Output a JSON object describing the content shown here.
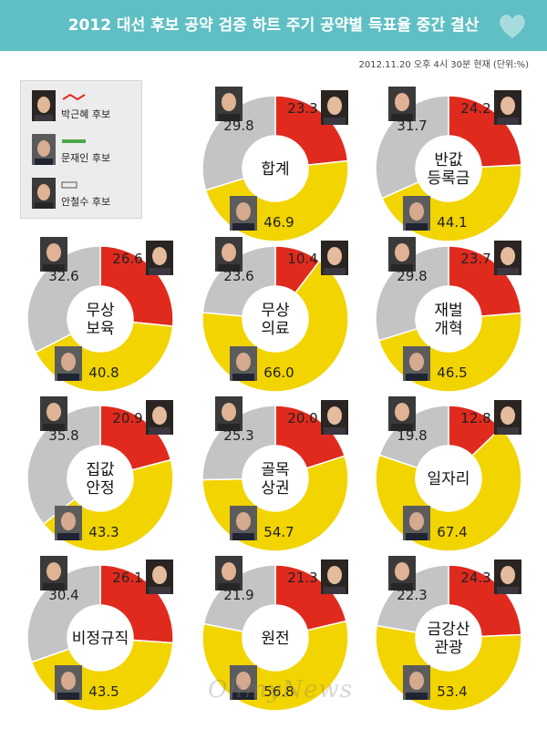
{
  "header": {
    "title": "2012 대선 후보 공약 검증 하트 주기 공약별 득표율 중간 결산",
    "subtitle": "2012.11.20 오후 4시 30분 현재 (단위:%)"
  },
  "legend": [
    {
      "name": "박근혜 후보",
      "color": "#e02a1e",
      "logo": "새누리당"
    },
    {
      "name": "문재인 후보",
      "color": "#f2d400",
      "logo": "민주통합당"
    },
    {
      "name": "안철수 후보",
      "color": "#c4c4c4",
      "logo": "무소속"
    }
  ],
  "watermark": "OhmyNews",
  "colors": {
    "park": "#e02a1e",
    "moon": "#f2d400",
    "ahn": "#c4c4c4",
    "header": "#5fbfc4"
  },
  "chart_data": [
    {
      "type": "pie",
      "label": "합계",
      "values": {
        "박근혜": 23.3,
        "문재인": 46.9,
        "안철수": 29.8
      }
    },
    {
      "type": "pie",
      "label": "반값 등록금",
      "values": {
        "박근혜": 24.2,
        "문재인": 44.1,
        "안철수": 31.7
      }
    },
    {
      "type": "pie",
      "label": "무상 보육",
      "values": {
        "박근혜": 26.6,
        "문재인": 40.8,
        "안철수": 32.6
      }
    },
    {
      "type": "pie",
      "label": "무상 의료",
      "values": {
        "박근혜": 10.4,
        "문재인": 66.0,
        "안철수": 23.6
      }
    },
    {
      "type": "pie",
      "label": "재벌 개혁",
      "values": {
        "박근혜": 23.7,
        "문재인": 46.5,
        "안철수": 29.8
      }
    },
    {
      "type": "pie",
      "label": "집값 안정",
      "values": {
        "박근혜": 20.9,
        "문재인": 43.3,
        "안철수": 35.8
      }
    },
    {
      "type": "pie",
      "label": "골목 상권",
      "values": {
        "박근혜": 20.0,
        "문재인": 54.7,
        "안철수": 25.3
      }
    },
    {
      "type": "pie",
      "label": "일자리",
      "values": {
        "박근혜": 12.8,
        "문재인": 67.4,
        "안철수": 19.8
      }
    },
    {
      "type": "pie",
      "label": "비정규직",
      "values": {
        "박근혜": 26.1,
        "문재인": 43.5,
        "안철수": 30.4
      }
    },
    {
      "type": "pie",
      "label": "원전",
      "values": {
        "박근혜": 21.3,
        "문재인": 56.8,
        "안철수": 21.9
      }
    },
    {
      "type": "pie",
      "label": "금강산 관광",
      "values": {
        "박근혜": 24.3,
        "문재인": 53.4,
        "안철수": 22.3
      }
    }
  ]
}
